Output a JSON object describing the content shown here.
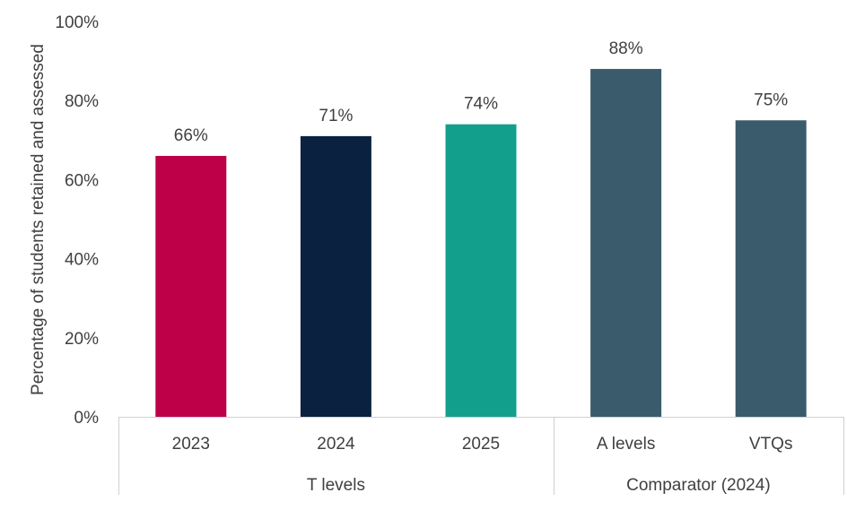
{
  "chart_data": {
    "type": "bar",
    "title": "",
    "xlabel": "",
    "ylabel": "Percentage of students retained and assessed",
    "ylim": [
      0,
      100
    ],
    "yticks": [
      0,
      20,
      40,
      60,
      80,
      100
    ],
    "ytick_labels": [
      "0%",
      "20%",
      "40%",
      "60%",
      "80%",
      "100%"
    ],
    "grid": false,
    "legend": "none",
    "categories": [
      "2023",
      "2024",
      "2025",
      "A levels",
      "VTQs"
    ],
    "values": [
      66,
      71,
      74,
      88,
      75
    ],
    "value_labels": [
      "66%",
      "71%",
      "74%",
      "88%",
      "75%"
    ],
    "colors": [
      "#BE0049",
      "#0A2240",
      "#12A08C",
      "#3A5B6B",
      "#3A5B6B"
    ],
    "groups": [
      {
        "label": "T levels",
        "categories": [
          "2023",
          "2024",
          "2025"
        ]
      },
      {
        "label": "Comparator (2024)",
        "categories": [
          "A levels",
          "VTQs"
        ]
      }
    ]
  }
}
